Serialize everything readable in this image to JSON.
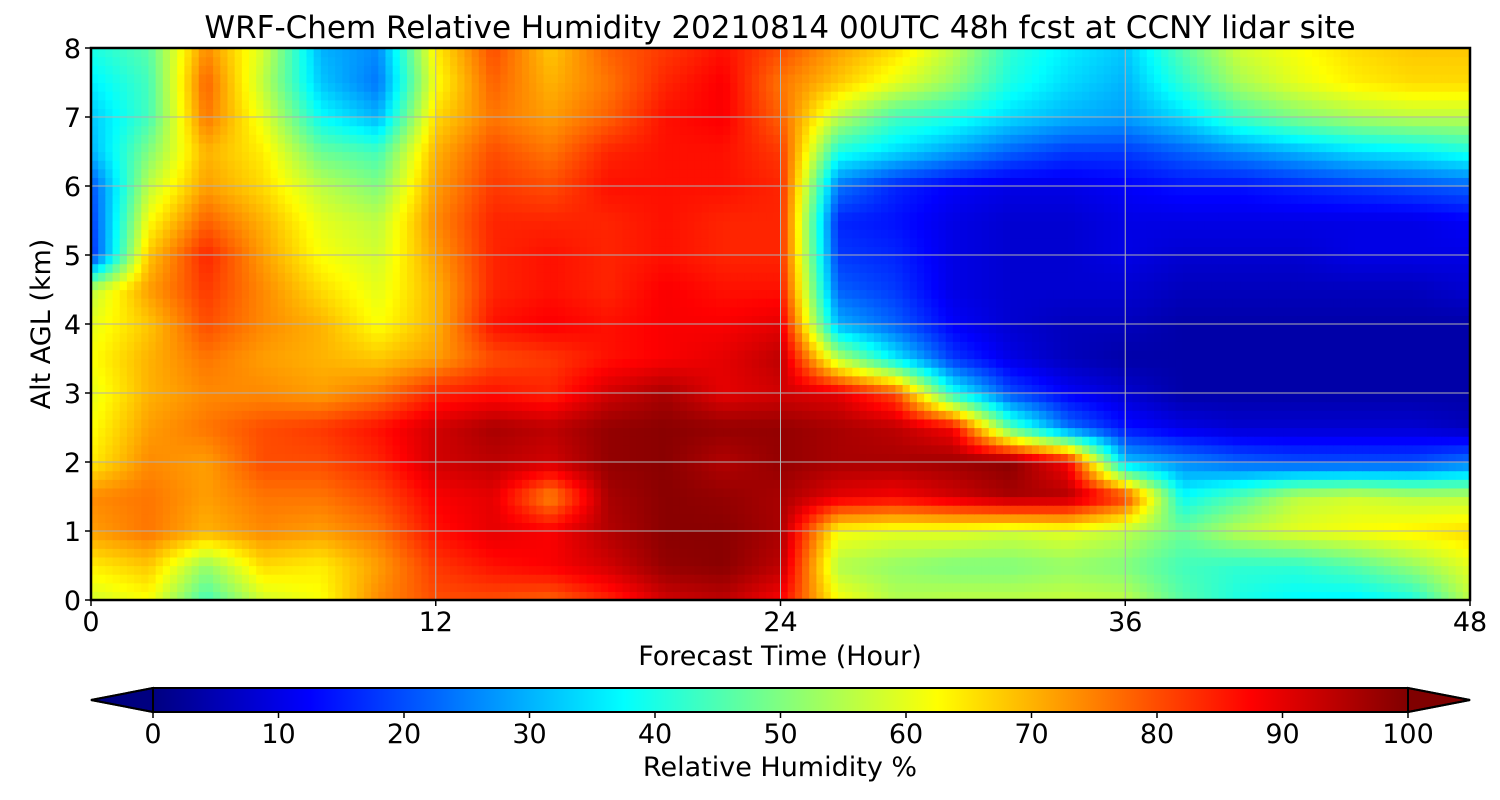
{
  "chart_data": {
    "type": "heatmap",
    "title": "WRF-Chem Relative Humidity 20210814 00UTC 48h fcst at CCNY lidar site",
    "xlabel": "Forecast Time (Hour)",
    "ylabel": "Alt AGL (km)",
    "xlim": [
      0,
      48
    ],
    "ylim": [
      0,
      8
    ],
    "xticks": [
      "0",
      "12",
      "24",
      "36",
      "48"
    ],
    "yticks": [
      "0",
      "1",
      "2",
      "3",
      "4",
      "5",
      "6",
      "7",
      "8"
    ],
    "grid": true,
    "colormap": "jet",
    "colorbar": {
      "label": "Relative Humidity %",
      "range": [
        0,
        100
      ],
      "extend": "both",
      "ticks": [
        "0",
        "10",
        "20",
        "30",
        "40",
        "50",
        "60",
        "70",
        "80",
        "90",
        "100"
      ]
    },
    "x": [
      0,
      2,
      4,
      6,
      8,
      10,
      12,
      14,
      16,
      18,
      20,
      22,
      24,
      26,
      28,
      30,
      32,
      34,
      36,
      38,
      40,
      42,
      44,
      46,
      48
    ],
    "y": [
      0,
      0.5,
      1,
      1.5,
      2,
      2.5,
      3,
      3.5,
      4,
      4.5,
      5,
      5.5,
      6,
      6.5,
      7,
      7.5,
      8
    ],
    "z": [
      [
        58,
        62,
        44,
        58,
        62,
        74,
        80,
        80,
        78,
        84,
        92,
        94,
        88,
        62,
        55,
        56,
        56,
        57,
        56,
        46,
        40,
        37,
        36,
        40,
        56
      ],
      [
        64,
        68,
        52,
        66,
        64,
        72,
        82,
        86,
        88,
        92,
        98,
        99,
        94,
        55,
        52,
        50,
        50,
        52,
        50,
        44,
        42,
        42,
        46,
        52,
        60
      ],
      [
        72,
        76,
        70,
        74,
        72,
        76,
        86,
        90,
        88,
        95,
        99,
        99,
        96,
        62,
        60,
        60,
        58,
        60,
        56,
        48,
        56,
        60,
        62,
        64,
        66
      ],
      [
        74,
        76,
        72,
        76,
        76,
        80,
        88,
        90,
        74,
        96,
        99,
        98,
        96,
        90,
        88,
        92,
        96,
        95,
        82,
        38,
        46,
        56,
        58,
        56,
        56
      ],
      [
        64,
        74,
        72,
        80,
        80,
        84,
        92,
        94,
        92,
        98,
        99,
        95,
        98,
        96,
        96,
        97,
        99,
        88,
        32,
        26,
        22,
        20,
        20,
        20,
        24
      ],
      [
        62,
        72,
        76,
        80,
        82,
        86,
        92,
        96,
        94,
        98,
        99,
        98,
        98,
        96,
        94,
        88,
        46,
        24,
        14,
        10,
        8,
        8,
        8,
        8,
        6
      ],
      [
        60,
        70,
        74,
        74,
        72,
        76,
        84,
        86,
        84,
        92,
        96,
        90,
        92,
        90,
        80,
        40,
        20,
        12,
        8,
        4,
        4,
        4,
        4,
        4,
        4
      ],
      [
        62,
        70,
        76,
        72,
        70,
        68,
        72,
        80,
        82,
        86,
        88,
        90,
        94,
        56,
        36,
        18,
        10,
        6,
        4,
        4,
        4,
        4,
        4,
        4,
        4
      ],
      [
        60,
        68,
        80,
        74,
        70,
        62,
        70,
        86,
        88,
        86,
        88,
        88,
        90,
        30,
        22,
        12,
        8,
        6,
        6,
        4,
        4,
        4,
        4,
        4,
        4
      ],
      [
        56,
        72,
        82,
        74,
        66,
        60,
        70,
        84,
        86,
        84,
        88,
        86,
        86,
        22,
        18,
        10,
        8,
        8,
        8,
        6,
        6,
        6,
        6,
        6,
        8
      ],
      [
        16,
        68,
        84,
        72,
        62,
        58,
        72,
        84,
        86,
        84,
        86,
        84,
        84,
        18,
        16,
        10,
        8,
        8,
        10,
        8,
        8,
        8,
        10,
        10,
        10
      ],
      [
        18,
        62,
        78,
        70,
        60,
        56,
        74,
        84,
        84,
        84,
        86,
        84,
        84,
        16,
        14,
        10,
        8,
        8,
        10,
        10,
        10,
        10,
        10,
        10,
        12
      ],
      [
        20,
        56,
        72,
        66,
        56,
        50,
        72,
        82,
        80,
        86,
        86,
        86,
        84,
        24,
        16,
        12,
        10,
        10,
        12,
        14,
        14,
        16,
        18,
        20,
        22
      ],
      [
        30,
        50,
        70,
        64,
        48,
        44,
        70,
        80,
        76,
        84,
        86,
        86,
        82,
        40,
        34,
        28,
        22,
        18,
        18,
        22,
        26,
        30,
        34,
        36,
        40
      ],
      [
        32,
        44,
        76,
        60,
        38,
        30,
        66,
        76,
        72,
        78,
        86,
        88,
        78,
        56,
        44,
        40,
        34,
        30,
        28,
        34,
        44,
        50,
        54,
        56,
        56
      ],
      [
        36,
        44,
        78,
        56,
        32,
        24,
        62,
        78,
        70,
        76,
        84,
        88,
        76,
        68,
        60,
        52,
        40,
        34,
        30,
        42,
        54,
        60,
        64,
        66,
        66
      ],
      [
        40,
        46,
        74,
        58,
        30,
        26,
        64,
        80,
        68,
        78,
        82,
        86,
        80,
        72,
        66,
        56,
        42,
        36,
        32,
        46,
        58,
        62,
        66,
        68,
        68
      ]
    ]
  }
}
